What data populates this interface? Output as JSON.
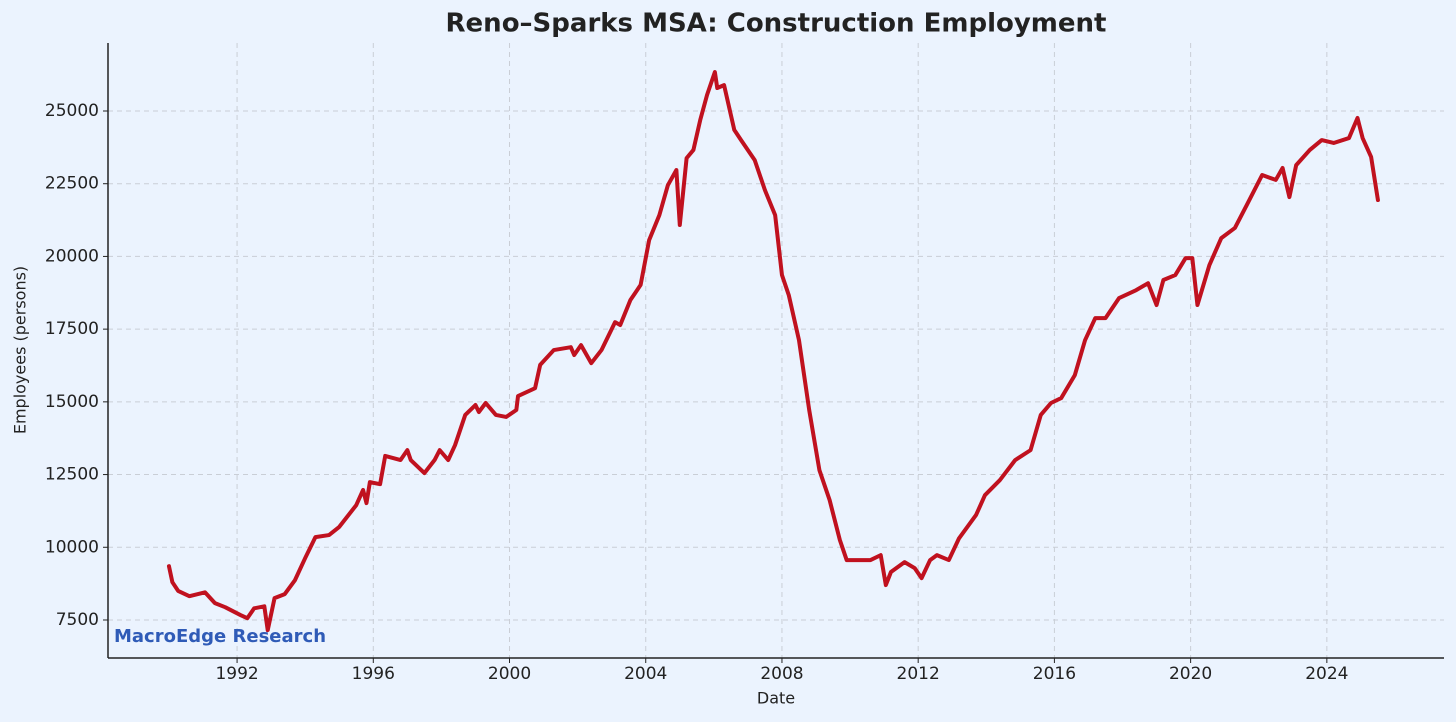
{
  "chart_data": {
    "type": "line",
    "title": "Reno–Sparks MSA: Construction Employment",
    "x_label": "Date",
    "y_label": "Employees (persons)",
    "annotation": "MacroEdge Research",
    "x": [
      1990.0,
      1990.1,
      1990.27,
      1990.6,
      1991.06,
      1991.35,
      1991.65,
      1992.1,
      1992.3,
      1992.5,
      1992.8,
      1992.9,
      1993.1,
      1993.4,
      1993.7,
      1994.0,
      1994.3,
      1994.7,
      1995.0,
      1995.5,
      1995.7,
      1995.8,
      1995.9,
      1996.2,
      1996.35,
      1996.8,
      1997.0,
      1997.1,
      1997.5,
      1997.8,
      1997.95,
      1998.2,
      1998.4,
      1998.7,
      1999.0,
      1999.1,
      1999.3,
      1999.6,
      1999.9,
      2000.2,
      2000.25,
      2000.75,
      2000.9,
      2001.3,
      2001.8,
      2001.9,
      2002.1,
      2002.4,
      2002.7,
      2003.1,
      2003.25,
      2003.55,
      2003.85,
      2004.1,
      2004.4,
      2004.65,
      2004.9,
      2005.0,
      2005.2,
      2005.4,
      2005.6,
      2005.8,
      2006.03,
      2006.1,
      2006.3,
      2006.6,
      2006.8,
      2007.2,
      2007.5,
      2007.8,
      2008.0,
      2008.2,
      2008.5,
      2008.8,
      2009.1,
      2009.4,
      2009.7,
      2009.9,
      2010.1,
      2010.6,
      2010.9,
      2011.05,
      2011.2,
      2011.6,
      2011.9,
      2012.1,
      2012.35,
      2012.55,
      2012.9,
      2013.2,
      2013.7,
      2013.96,
      2014.4,
      2014.85,
      2015.3,
      2015.6,
      2015.9,
      2016.2,
      2016.6,
      2016.9,
      2017.2,
      2017.5,
      2017.9,
      2018.4,
      2018.75,
      2019.0,
      2019.2,
      2019.55,
      2019.85,
      2020.05,
      2020.2,
      2020.55,
      2020.9,
      2021.3,
      2021.65,
      2022.1,
      2022.5,
      2022.7,
      2022.9,
      2023.1,
      2023.5,
      2023.85,
      2024.2,
      2024.65,
      2024.9,
      2025.05,
      2025.3,
      2025.5
    ],
    "series": [
      {
        "name": "Construction Employment",
        "color": "#c0111f",
        "values": [
          9350,
          8800,
          8500,
          8320,
          8450,
          8080,
          7940,
          7670,
          7560,
          7900,
          7970,
          7150,
          8250,
          8390,
          8870,
          9630,
          10350,
          10420,
          10700,
          11450,
          11970,
          11520,
          12240,
          12170,
          13140,
          13000,
          13340,
          13000,
          12550,
          13000,
          13340,
          13000,
          13510,
          14550,
          14890,
          14650,
          14960,
          14550,
          14480,
          14720,
          15200,
          15470,
          16270,
          16780,
          16880,
          16610,
          16950,
          16330,
          16780,
          17740,
          17640,
          18500,
          19020,
          20560,
          21420,
          22450,
          22970,
          21080,
          23380,
          23660,
          24690,
          25550,
          26340,
          25790,
          25890,
          24350,
          24000,
          23310,
          22280,
          21420,
          19360,
          18670,
          17120,
          14720,
          12650,
          11620,
          10250,
          9560,
          9560,
          9560,
          9730,
          8700,
          9150,
          9490,
          9280,
          8940,
          9560,
          9730,
          9560,
          10310,
          11110,
          11790,
          12310,
          13000,
          13340,
          14550,
          14960,
          15130,
          15920,
          17120,
          17880,
          17880,
          18570,
          18840,
          19080,
          18330,
          19190,
          19360,
          19940,
          19940,
          18330,
          19700,
          20630,
          20980,
          21770,
          22800,
          22630,
          23040,
          22040,
          23140,
          23660,
          24000,
          23900,
          24070,
          24760,
          24070,
          23420,
          21940
        ]
      }
    ],
    "xlim": [
      1988.21,
      2027.44
    ],
    "xticks": [
      1992,
      1996,
      2000,
      2004,
      2008,
      2012,
      2016,
      2020,
      2024
    ],
    "ylim": [
      6193,
      27338
    ],
    "yticks": [
      7500,
      10000,
      12500,
      15000,
      17500,
      20000,
      22500,
      25000
    ],
    "grid": true
  }
}
